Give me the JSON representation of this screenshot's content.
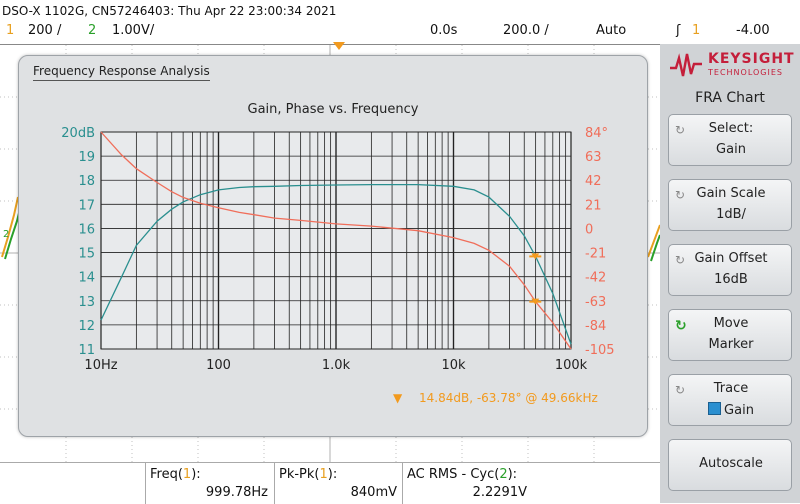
{
  "status": {
    "header": "DSO-X 1102G, CN57246403: Thu Apr 22 23:00:34 2021"
  },
  "channels": {
    "ch1_num": "1",
    "ch1_scale": "200 /",
    "ch2_num": "2",
    "ch2_scale": "1.00V/",
    "time_delay": "0.0s",
    "time_scale": "200.0 /",
    "trigger_mode": "Auto",
    "trigger_source": "1",
    "trigger_level": "-4.00 "
  },
  "fra_window": {
    "title": "Frequency Response Analysis",
    "marker_readout": "14.84dB, -63.78° @ 49.66kHz"
  },
  "chart_data": {
    "type": "line",
    "title": "Gain, Phase vs. Frequency",
    "x_scale": "log",
    "xlim": [
      10,
      100000
    ],
    "x_ticks": [
      "10Hz",
      "100",
      "1.0k",
      "10k",
      "100k"
    ],
    "ylim_left": [
      11,
      20
    ],
    "y_ticks_left": [
      "20dB",
      "19",
      "18",
      "17",
      "16",
      "15",
      "14",
      "13",
      "12",
      "11"
    ],
    "ylim_right": [
      -105,
      84
    ],
    "y_ticks_right": [
      "84°",
      "63",
      "42",
      "21",
      "0",
      "-21",
      "-42",
      "-63",
      "-84",
      "-105"
    ],
    "grid": true,
    "series": [
      {
        "color": "#2a8f8f",
        "axis": "left",
        "x": [
          10,
          15,
          20,
          30,
          40,
          50,
          70,
          100,
          150,
          200,
          300,
          500,
          1000,
          2000,
          5000,
          10000,
          15000,
          20000,
          30000,
          40000,
          50000,
          70000,
          100000
        ],
        "values": [
          12.2,
          14.0,
          15.3,
          16.3,
          16.8,
          17.1,
          17.4,
          17.6,
          17.7,
          17.73,
          17.75,
          17.78,
          17.8,
          17.82,
          17.82,
          17.75,
          17.6,
          17.3,
          16.5,
          15.7,
          14.84,
          13.3,
          11.2
        ]
      },
      {
        "color": "#f06e5a",
        "axis": "right",
        "x": [
          10,
          15,
          20,
          30,
          40,
          50,
          70,
          100,
          150,
          200,
          300,
          500,
          1000,
          2000,
          5000,
          10000,
          15000,
          20000,
          30000,
          40000,
          50000,
          70000,
          100000
        ],
        "values": [
          84,
          64,
          52,
          40,
          32,
          27,
          22,
          18,
          14,
          12,
          9,
          7,
          4,
          2,
          -2,
          -8,
          -13,
          -19,
          -33,
          -49,
          -63.78,
          -82,
          -105
        ]
      }
    ],
    "markers": [
      {
        "x": 49660,
        "series": 0,
        "value": 14.84,
        "color": "#f29a1e"
      },
      {
        "x": 49660,
        "series": 1,
        "value": -63.78,
        "color": "#f29a1e"
      }
    ]
  },
  "softkeys": {
    "brand_name": "KEYSIGHT",
    "brand_sub": "TECHNOLOGIES",
    "title": "FRA Chart",
    "select_label": "Select:",
    "select_value": "Gain",
    "gain_scale_label": "Gain Scale",
    "gain_scale_value": "1dB/",
    "gain_offset_label": "Gain Offset",
    "gain_offset_value": "16dB",
    "move_label": "Move",
    "move_value": "Marker",
    "trace_label": "Trace",
    "trace_value": "Gain",
    "autoscale_label": "Autoscale"
  },
  "measurements": [
    {
      "label_pre": "Freq(",
      "ch": "1",
      "label_post": "):",
      "value": "999.78Hz"
    },
    {
      "label_pre": "Pk-Pk(",
      "ch": "1",
      "label_post": "):",
      "value": "840mV"
    },
    {
      "label_pre": "AC RMS - Cyc(",
      "ch": "2",
      "label_post": "):",
      "value": "2.2291V"
    }
  ],
  "colors": {
    "ch1": "#e8a020",
    "ch2": "#2aa02a",
    "gain": "#2a8f8f",
    "phase": "#f06e5a",
    "marker": "#f29a1e",
    "brand": "#c41e3a"
  }
}
